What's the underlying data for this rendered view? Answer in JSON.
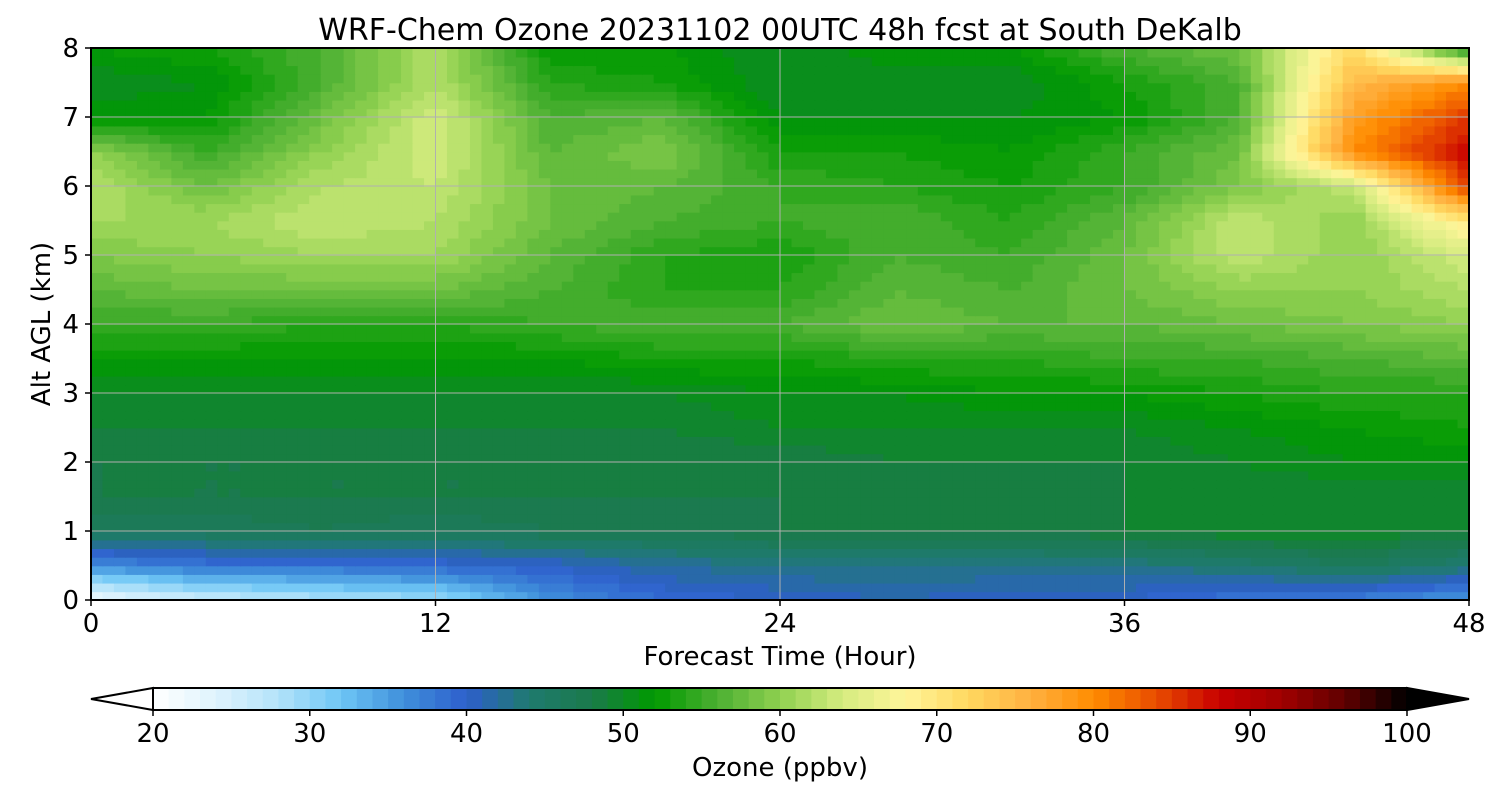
{
  "chart_data": {
    "type": "heatmap",
    "title": "WRF-Chem Ozone  20231102 00UTC 48h fcst at South DeKalb",
    "xlabel": "Forecast Time (Hour)",
    "ylabel": "Alt AGL (km)",
    "xlim": [
      0,
      48
    ],
    "ylim": [
      0,
      8
    ],
    "xticks": [
      0,
      12,
      24,
      36,
      48
    ],
    "yticks": [
      0,
      1,
      2,
      3,
      4,
      5,
      6,
      7,
      8
    ],
    "grid": true,
    "x": [
      0,
      4,
      8,
      12,
      16,
      20,
      24,
      28,
      32,
      36,
      40,
      44,
      48
    ],
    "y": [
      0,
      0.5,
      1,
      1.5,
      2,
      2.5,
      3,
      3.5,
      4,
      4.5,
      5,
      5.5,
      6,
      6.5,
      7,
      7.5,
      8
    ],
    "z": [
      [
        22,
        26,
        28,
        29,
        36,
        39,
        40,
        41,
        40,
        40,
        38,
        37,
        35
      ],
      [
        36,
        38,
        38,
        39,
        40,
        42,
        43,
        43,
        43,
        43,
        44,
        46,
        44
      ],
      [
        46,
        46,
        47,
        46,
        47,
        47,
        48,
        48,
        48,
        49,
        50,
        50,
        49
      ],
      [
        48,
        48,
        48,
        48,
        48,
        48,
        48,
        48,
        48,
        49,
        49,
        49,
        49
      ],
      [
        48,
        48,
        48,
        48,
        48,
        48,
        48,
        49,
        49,
        49,
        50,
        51,
        51
      ],
      [
        49,
        49,
        49,
        49,
        49,
        49,
        50,
        50,
        50,
        50,
        51,
        52,
        53
      ],
      [
        50,
        50,
        50,
        50,
        50,
        50,
        51,
        51,
        52,
        52,
        53,
        54,
        54
      ],
      [
        52,
        52,
        52,
        52,
        52,
        53,
        53,
        54,
        54,
        55,
        55,
        56,
        57
      ],
      [
        55,
        55,
        54,
        54,
        55,
        56,
        56,
        58,
        57,
        57,
        58,
        59,
        60
      ],
      [
        57,
        58,
        58,
        58,
        56,
        54,
        54,
        57,
        56,
        58,
        60,
        60,
        62
      ],
      [
        59,
        60,
        61,
        61,
        57,
        54,
        53,
        56,
        55,
        58,
        63,
        60,
        64
      ],
      [
        61,
        61,
        63,
        62,
        58,
        56,
        55,
        56,
        54,
        57,
        63,
        60,
        70
      ],
      [
        62,
        58,
        62,
        63,
        58,
        57,
        55,
        54,
        53,
        55,
        59,
        63,
        85
      ],
      [
        60,
        55,
        60,
        64,
        57,
        59,
        53,
        53,
        52,
        55,
        58,
        80,
        88
      ],
      [
        52,
        52,
        58,
        64,
        56,
        57,
        51,
        51,
        51,
        52,
        56,
        78,
        85
      ],
      [
        50,
        51,
        56,
        62,
        54,
        53,
        50,
        50,
        50,
        53,
        56,
        75,
        80
      ],
      [
        52,
        53,
        56,
        62,
        52,
        52,
        50,
        52,
        52,
        56,
        58,
        72,
        52
      ]
    ],
    "colorbar": {
      "label": "Ozone  (ppbv)",
      "min": 20,
      "max": 100,
      "step": 1,
      "ticks": [
        20,
        30,
        40,
        50,
        60,
        70,
        80,
        90,
        100
      ],
      "extend": "both",
      "orientation": "horizontal",
      "colors": [
        "#ffffff",
        "#dff3fd",
        "#b3e3fa",
        "#6ec6f5",
        "#3f8fdb",
        "#2e5fcc",
        "#1f7a6e",
        "#1a7a4a",
        "#009a00",
        "#4cb032",
        "#8fd050",
        "#d6ec80",
        "#fff59a",
        "#ffd860",
        "#ffb040",
        "#ff8c00",
        "#e84c00",
        "#c80000",
        "#a00000",
        "#600000",
        "#000000"
      ]
    }
  }
}
